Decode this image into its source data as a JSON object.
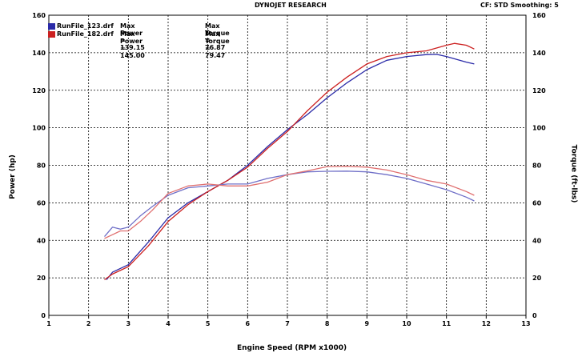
{
  "header": {
    "center": "DYNOJET RESEARCH",
    "right": "CF: STD  Smoothing: 5"
  },
  "legend": [
    {
      "file": "RunFile_123.drf",
      "power_text": "Max Power = 139.15",
      "torque_text": "Max Torque = 76.87",
      "color": "#2a2aa8"
    },
    {
      "file": "RunFile_182.drf",
      "power_text": "Max Power = 145.00",
      "torque_text": "Max Torque = 79.47",
      "color": "#cc2020"
    }
  ],
  "chart_data": {
    "type": "line",
    "xlabel": "Engine Speed (RPM x1000)",
    "ylabel_left": "Power (hp)",
    "ylabel_right": "Torque (ft-lbs)",
    "xlim": [
      1,
      13
    ],
    "ylim": [
      0,
      160
    ],
    "x_ticks": [
      1,
      2,
      3,
      4,
      5,
      6,
      7,
      8,
      9,
      10,
      11,
      12,
      13
    ],
    "y_ticks": [
      0,
      20,
      40,
      60,
      80,
      100,
      120,
      140,
      160
    ],
    "grid": true,
    "series": [
      {
        "name": "RunFile_123.drf",
        "quantity": "Power",
        "color": "#2a2aa8",
        "x": [
          2.45,
          2.6,
          3.0,
          3.5,
          4.0,
          4.5,
          5.0,
          5.5,
          6.0,
          6.5,
          7.0,
          7.5,
          8.0,
          8.5,
          9.0,
          9.5,
          10.0,
          10.5,
          10.75,
          11.0,
          11.5,
          11.7
        ],
        "y": [
          19,
          23,
          27,
          39,
          52,
          60,
          66,
          72,
          80,
          90,
          99,
          107,
          116,
          124,
          131,
          136,
          138,
          139,
          139.15,
          138,
          135,
          134
        ]
      },
      {
        "name": "RunFile_182.drf",
        "quantity": "Power",
        "color": "#cc2020",
        "x": [
          2.4,
          2.6,
          3.0,
          3.5,
          4.0,
          4.5,
          5.0,
          5.5,
          6.0,
          6.5,
          7.0,
          7.5,
          8.0,
          8.5,
          9.0,
          9.5,
          10.0,
          10.5,
          11.0,
          11.2,
          11.5,
          11.7
        ],
        "y": [
          19,
          22,
          26,
          37,
          50,
          59,
          66,
          72,
          79,
          89,
          98,
          109,
          119,
          127,
          134,
          138,
          140,
          141,
          144,
          145,
          144,
          142
        ]
      },
      {
        "name": "RunFile_123.drf",
        "quantity": "Torque",
        "color": "#7070c8",
        "x": [
          2.4,
          2.6,
          2.8,
          3.0,
          3.3,
          3.6,
          4.0,
          4.5,
          5.0,
          5.5,
          6.0,
          6.5,
          7.0,
          7.5,
          8.0,
          8.5,
          9.0,
          9.5,
          10.0,
          10.5,
          11.0,
          11.5,
          11.7
        ],
        "y": [
          42,
          47,
          46,
          47,
          53,
          58,
          64,
          68,
          69,
          70,
          70,
          73,
          75,
          76.5,
          76.8,
          76.87,
          76.5,
          75,
          73,
          70,
          67,
          63,
          61
        ]
      },
      {
        "name": "RunFile_182.drf",
        "quantity": "Torque",
        "color": "#e07070",
        "x": [
          2.4,
          2.6,
          2.8,
          3.0,
          3.3,
          3.6,
          4.0,
          4.5,
          5.0,
          5.5,
          6.0,
          6.5,
          7.0,
          7.5,
          8.0,
          8.5,
          9.0,
          9.5,
          10.0,
          10.5,
          11.0,
          11.5,
          11.7
        ],
        "y": [
          41,
          43,
          45,
          45,
          50,
          56,
          65,
          69,
          70,
          69,
          69,
          71,
          75,
          77,
          79.3,
          79.47,
          79,
          77.5,
          75,
          72,
          70,
          66,
          64
        ]
      }
    ]
  }
}
